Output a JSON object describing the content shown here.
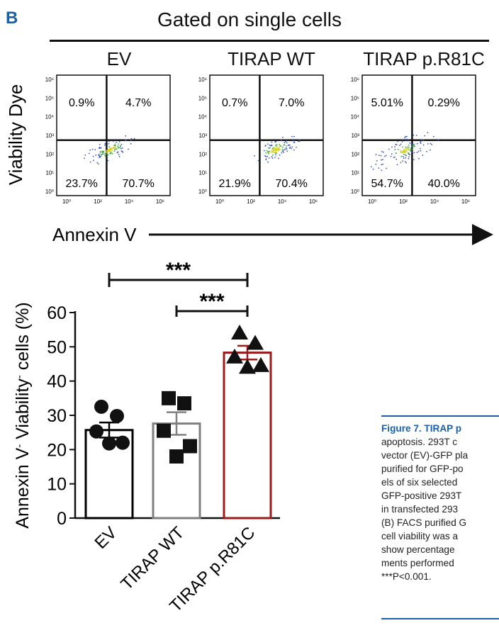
{
  "panel_label": "B",
  "gate_title": "Gated on single cells",
  "flow": {
    "x_axis_label": "Annexin V",
    "y_axis_label": "Viability Dye",
    "tick_labels": [
      "10⁰",
      "10²",
      "10⁴",
      "10⁶"
    ],
    "y_tick_labels": [
      "10⁰",
      "10¹",
      "10²",
      "10³",
      "10⁴",
      "10⁵",
      "10⁶"
    ],
    "plots": [
      {
        "name": "EV",
        "quadrants": {
          "upper_left": "0.9%",
          "upper_right": "4.7%",
          "lower_left": "23.7%",
          "lower_right": "70.7%"
        }
      },
      {
        "name": "TIRAP WT",
        "quadrants": {
          "upper_left": "0.7%",
          "upper_right": "7.0%",
          "lower_left": "21.9%",
          "lower_right": "70.4%"
        }
      },
      {
        "name": "TIRAP p.R81C",
        "quadrants": {
          "upper_left": "5.01%",
          "upper_right": "0.29%",
          "lower_left": "54.7%",
          "lower_right": "40.0%"
        }
      }
    ]
  },
  "chart_data": {
    "type": "bar",
    "categories": [
      "EV",
      "TIRAP WT",
      "TIRAP p.R81C"
    ],
    "values": [
      25.7,
      27.6,
      48.3
    ],
    "errors": [
      2.2,
      3.3,
      2.0
    ],
    "points": [
      [
        32.5,
        29.8,
        25.3,
        22.0,
        21.8
      ],
      [
        35.0,
        33.5,
        25.5,
        21.0,
        18.0
      ],
      [
        54.0,
        51.0,
        47.0,
        44.5,
        44.0
      ]
    ],
    "marker_shapes": [
      "circle",
      "square",
      "triangle"
    ],
    "bar_colors": [
      "#000000",
      "#808080",
      "#9b1c1c"
    ],
    "ylabel": "Annexin V- Viability- cells (%)",
    "ylabel_parts": [
      "Annexin V",
      "-",
      " Viability",
      "-",
      " cells (%)"
    ],
    "ylim": [
      0,
      60
    ],
    "yticks": [
      "0",
      "10",
      "20",
      "30",
      "40",
      "50",
      "60"
    ],
    "significance": [
      {
        "from": "EV",
        "to": "TIRAP p.R81C",
        "label": "***"
      },
      {
        "from": "TIRAP WT",
        "to": "TIRAP p.R81C",
        "label": "***"
      }
    ]
  },
  "caption": {
    "title": "Figure 7. TIRAP p",
    "lines": [
      "apoptosis. 293T c",
      "vector (EV)-GFP pla",
      "purified for GFP-po",
      "els of six selected",
      "GFP-positive 293T",
      "in transfected 293",
      "(B) FACS purified G",
      "cell viability was a",
      "show percentage",
      "ments performed",
      "***P<0.001."
    ],
    "title_color": "#1c5fa8"
  }
}
